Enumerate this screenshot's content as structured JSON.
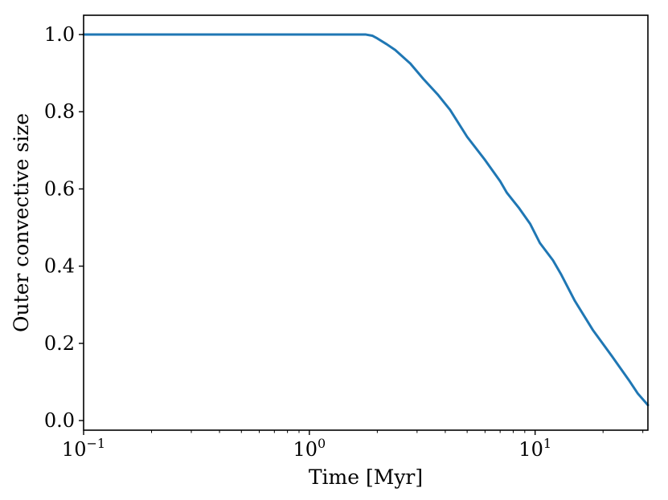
{
  "chart_data": {
    "type": "line",
    "title": "",
    "xlabel": "Time [Myr]",
    "ylabel": "Outer convective size",
    "x_scale": "log",
    "xlim": [
      0.1,
      31.6
    ],
    "ylim": [
      -0.025,
      1.05
    ],
    "grid": false,
    "x_ticks": [
      {
        "value": 0.1,
        "base": "10",
        "exp": "−1"
      },
      {
        "value": 1,
        "base": "10",
        "exp": "0"
      },
      {
        "value": 10,
        "base": "10",
        "exp": "1"
      }
    ],
    "y_ticks": [
      {
        "value": 0.0,
        "label": "0.0"
      },
      {
        "value": 0.2,
        "label": "0.2"
      },
      {
        "value": 0.4,
        "label": "0.4"
      },
      {
        "value": 0.6,
        "label": "0.6"
      },
      {
        "value": 0.8,
        "label": "0.8"
      },
      {
        "value": 1.0,
        "label": "1.0"
      }
    ],
    "series": [
      {
        "color": "#1f77b4",
        "x": [
          0.1,
          0.5,
          1.0,
          1.5,
          1.78,
          1.9,
          2.0,
          2.2,
          2.4,
          2.8,
          3.2,
          3.7,
          4.2,
          5.0,
          6.0,
          7.0,
          7.5,
          8.5,
          9.5,
          10.5,
          12.0,
          13.0,
          15.0,
          18.0,
          22.0,
          26.0,
          28.5,
          31.6
        ],
        "y": [
          1.0,
          1.0,
          1.0,
          1.0,
          1.0,
          0.997,
          0.99,
          0.975,
          0.96,
          0.925,
          0.885,
          0.845,
          0.805,
          0.735,
          0.675,
          0.62,
          0.59,
          0.55,
          0.51,
          0.46,
          0.415,
          0.38,
          0.31,
          0.235,
          0.165,
          0.105,
          0.07,
          0.04
        ]
      }
    ]
  }
}
